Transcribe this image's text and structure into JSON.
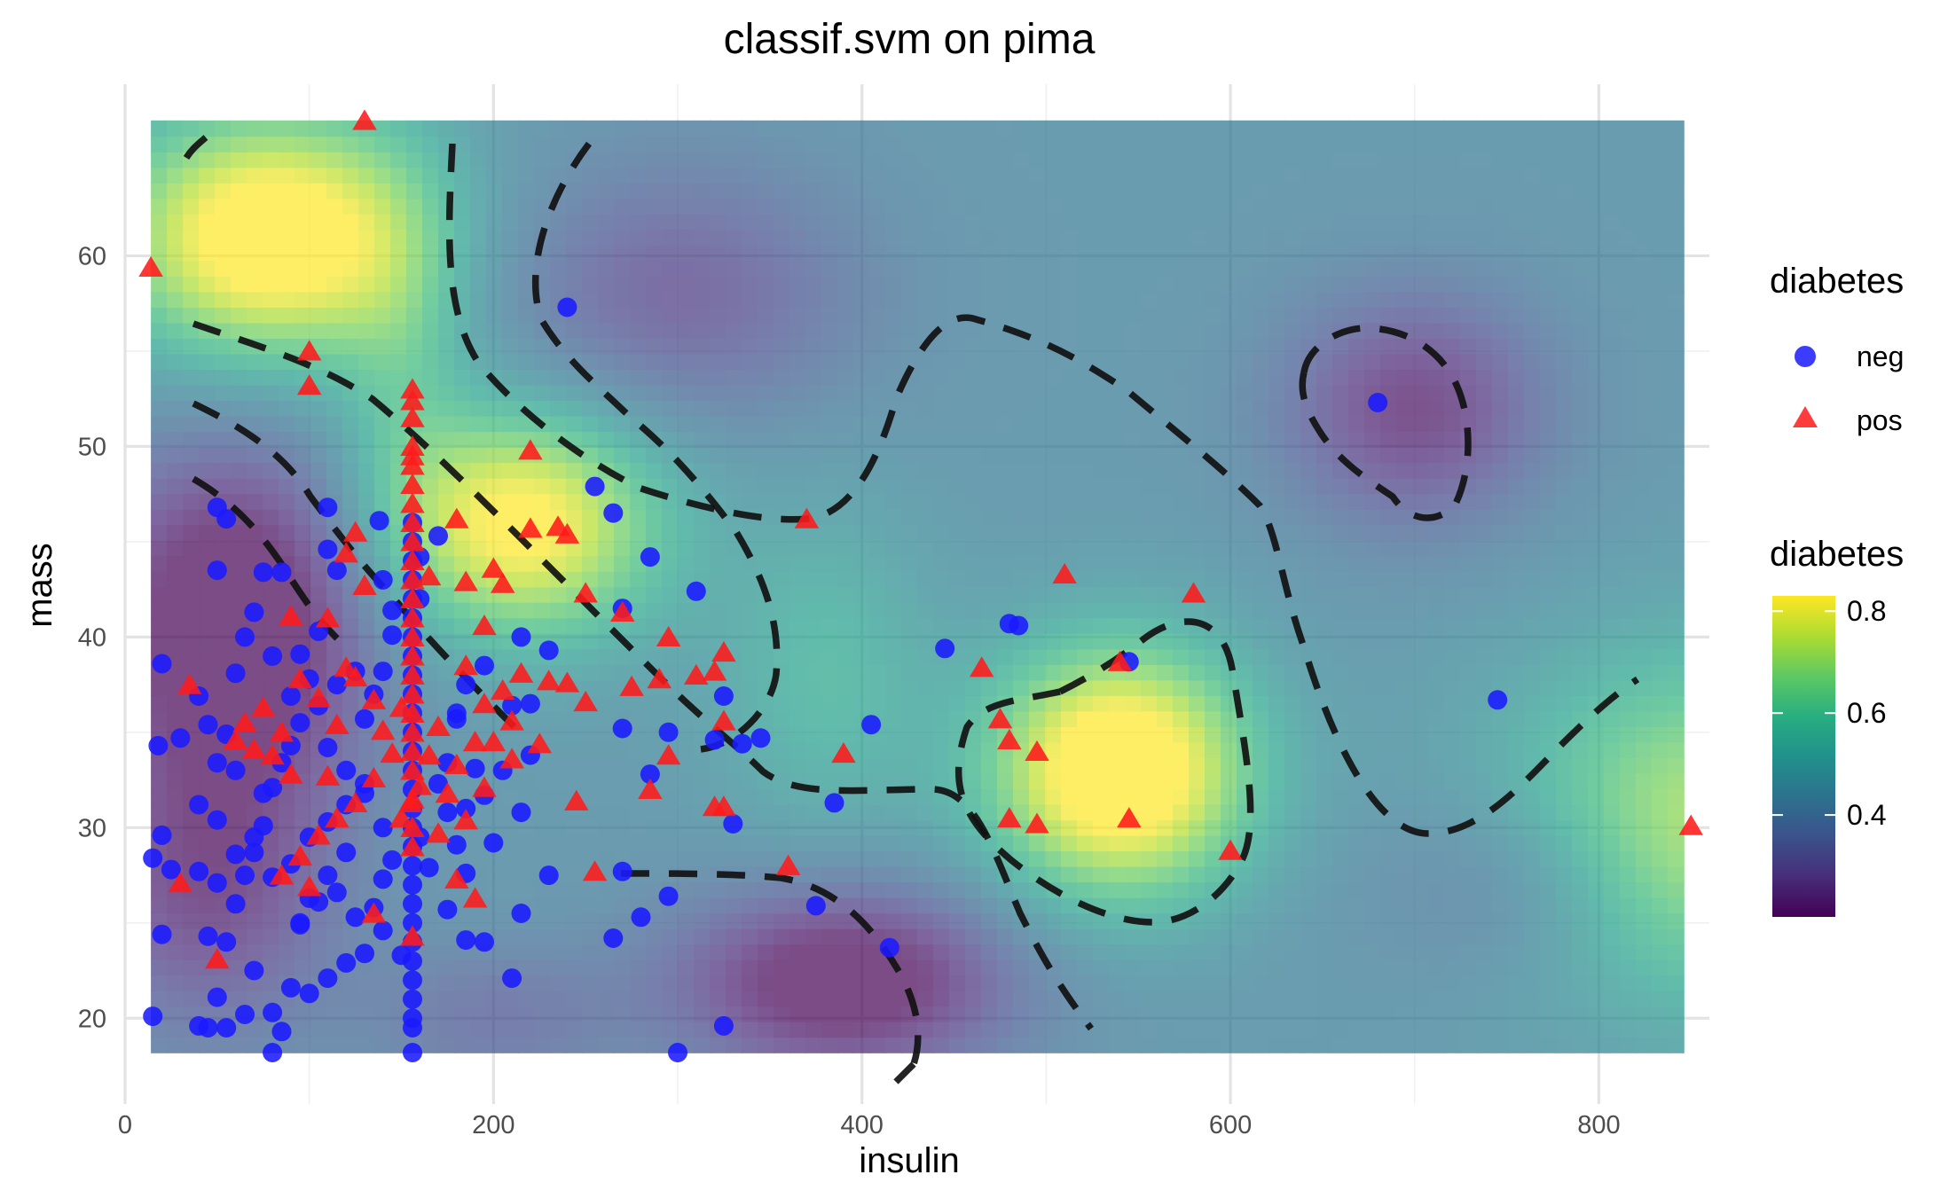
{
  "chart_data": {
    "type": "scatter",
    "title": "classif.svm on pima",
    "xlabel": "insulin",
    "ylabel": "mass",
    "xlim": [
      0,
      860
    ],
    "ylim": [
      15.5,
      69
    ],
    "x_ticks": [
      0,
      200,
      400,
      600,
      800
    ],
    "x_tick_labels": [
      "0",
      "200",
      "400",
      "600",
      "800"
    ],
    "y_ticks": [
      20,
      30,
      40,
      50,
      60
    ],
    "y_tick_labels": [
      "20",
      "30",
      "40",
      "50",
      "60"
    ],
    "grid": true,
    "background": {
      "type": "heatmap",
      "x_range": [
        14,
        846
      ],
      "y_range": [
        18.2,
        67.1
      ],
      "colormap": "viridis",
      "value_range": [
        0.2,
        0.83
      ],
      "opacity": 0.7
    },
    "legend_shape": {
      "title": "diabetes",
      "placement": "right",
      "entries": [
        {
          "label": "neg",
          "shape": "circle",
          "color": "#1a1aff"
        },
        {
          "label": "pos",
          "shape": "triangle",
          "color": "#ff1a1a"
        }
      ]
    },
    "legend_fill": {
      "title": "diabetes",
      "placement": "right",
      "ticks": [
        0.4,
        0.6,
        0.8
      ],
      "tick_labels": [
        "0.4",
        "0.6",
        "0.8"
      ],
      "range": [
        0.2,
        0.83
      ]
    },
    "series": [
      {
        "name": "neg",
        "shape": "circle",
        "color": "#1a1aff",
        "points": [
          [
            240,
            57.3
          ],
          [
            680,
            52.3
          ],
          [
            745,
            36.7
          ],
          [
            445,
            39.4
          ],
          [
            480,
            40.7
          ],
          [
            485,
            40.6
          ],
          [
            545,
            38.7
          ],
          [
            415,
            23.7
          ],
          [
            325,
            19.6
          ],
          [
            300,
            18.2
          ],
          [
            255,
            47.9
          ],
          [
            265,
            46.5
          ],
          [
            285,
            44.2
          ],
          [
            310,
            42.4
          ],
          [
            270,
            41.5
          ],
          [
            230,
            39.3
          ],
          [
            325,
            36.9
          ],
          [
            320,
            34.6
          ],
          [
            335,
            34.4
          ],
          [
            345,
            34.7
          ],
          [
            405,
            35.4
          ],
          [
            295,
            35
          ],
          [
            270,
            35.2
          ],
          [
            285,
            32.8
          ],
          [
            385,
            31.3
          ],
          [
            330,
            30.2
          ],
          [
            270,
            27.7
          ],
          [
            230,
            27.5
          ],
          [
            280,
            25.3
          ],
          [
            295,
            26.4
          ],
          [
            375,
            25.9
          ],
          [
            265,
            24.2
          ],
          [
            210,
            22.1
          ],
          [
            215,
            25.5
          ],
          [
            215,
            30.8
          ],
          [
            220,
            33.8
          ],
          [
            210,
            36.4
          ],
          [
            220,
            36.5
          ],
          [
            215,
            40
          ],
          [
            195,
            38.5
          ],
          [
            185,
            37.5
          ],
          [
            180,
            36
          ],
          [
            170,
            45.3
          ],
          [
            160,
            44.2
          ],
          [
            160,
            42
          ],
          [
            145,
            41.4
          ],
          [
            140,
            43
          ],
          [
            138,
            46.1
          ],
          [
            110,
            46.8
          ],
          [
            110,
            44.6
          ],
          [
            115,
            43.5
          ],
          [
            85,
            43.4
          ],
          [
            75,
            43.4
          ],
          [
            55,
            46.2
          ],
          [
            50,
            46.8
          ],
          [
            50,
            43.5
          ],
          [
            20,
            38.6
          ],
          [
            18,
            34.3
          ],
          [
            30,
            34.7
          ],
          [
            40,
            36.9
          ],
          [
            45,
            35.4
          ],
          [
            55,
            34.9
          ],
          [
            50,
            33.4
          ],
          [
            60,
            33
          ],
          [
            40,
            31.2
          ],
          [
            50,
            30.4
          ],
          [
            60,
            28.6
          ],
          [
            70,
            29.5
          ],
          [
            75,
            31.8
          ],
          [
            80,
            27.4
          ],
          [
            25,
            27.8
          ],
          [
            40,
            27.7
          ],
          [
            50,
            27.1
          ],
          [
            60,
            26
          ],
          [
            45,
            24.3
          ],
          [
            55,
            24
          ],
          [
            20,
            24.4
          ],
          [
            15,
            28.4
          ],
          [
            20,
            29.6
          ],
          [
            15,
            20.1
          ],
          [
            40,
            19.6
          ],
          [
            45,
            19.5
          ],
          [
            55,
            19.5
          ],
          [
            50,
            21.1
          ],
          [
            65,
            20.2
          ],
          [
            80,
            20.3
          ],
          [
            80,
            18.2
          ],
          [
            85,
            19.3
          ],
          [
            70,
            22.5
          ],
          [
            90,
            21.6
          ],
          [
            100,
            21.3
          ],
          [
            110,
            22.1
          ],
          [
            120,
            22.9
          ],
          [
            130,
            23.4
          ],
          [
            140,
            24.6
          ],
          [
            150,
            23.3
          ],
          [
            95,
            25
          ],
          [
            105,
            26.1
          ],
          [
            115,
            26.6
          ],
          [
            125,
            25.3
          ],
          [
            90,
            28.1
          ],
          [
            100,
            29.5
          ],
          [
            110,
            30.3
          ],
          [
            120,
            31.2
          ],
          [
            130,
            32.3
          ],
          [
            85,
            33.4
          ],
          [
            95,
            35.5
          ],
          [
            105,
            36.4
          ],
          [
            115,
            37.5
          ],
          [
            125,
            38.2
          ],
          [
            95,
            39.1
          ],
          [
            105,
            40.3
          ],
          [
            100,
            37.8
          ],
          [
            90,
            34.3
          ],
          [
            80,
            32.1
          ],
          [
            75,
            30.1
          ],
          [
            70,
            28.7
          ],
          [
            65,
            27.5
          ],
          [
            60,
            38.1
          ],
          [
            65,
            40
          ],
          [
            70,
            41.3
          ],
          [
            80,
            39
          ],
          [
            90,
            36.9
          ],
          [
            110,
            34.2
          ],
          [
            120,
            33
          ],
          [
            130,
            31.8
          ],
          [
            140,
            30
          ],
          [
            145,
            28.3
          ],
          [
            140,
            27.3
          ],
          [
            135,
            25.8
          ],
          [
            130,
            35.7
          ],
          [
            135,
            37
          ],
          [
            140,
            38.2
          ],
          [
            145,
            40.1
          ],
          [
            120,
            28.7
          ],
          [
            110,
            27.5
          ],
          [
            100,
            26.3
          ],
          [
            95,
            24.9
          ],
          [
            170,
            32.3
          ],
          [
            175,
            30.8
          ],
          [
            180,
            29.1
          ],
          [
            185,
            27.6
          ],
          [
            175,
            25.7
          ],
          [
            185,
            24.1
          ],
          [
            195,
            24
          ],
          [
            175,
            33.4
          ],
          [
            180,
            35.7
          ],
          [
            190,
            33.1
          ],
          [
            195,
            31.7
          ],
          [
            200,
            29.2
          ],
          [
            205,
            33
          ],
          [
            185,
            31
          ],
          [
            165,
            27.9
          ],
          [
            160,
            29.5
          ]
        ]
      },
      {
        "name": "neg-column-at-156",
        "x": 156,
        "color": "#1a1aff",
        "y": [
          18.2,
          19.5,
          20,
          21,
          22,
          23,
          24,
          25,
          26,
          27,
          28,
          29,
          30,
          31,
          32,
          33,
          34,
          35,
          36,
          37,
          38,
          39,
          40,
          41,
          42,
          43,
          44,
          45,
          46
        ]
      },
      {
        "name": "pos",
        "shape": "triangle",
        "color": "#ff1a1a",
        "points": [
          [
            130,
            67.1
          ],
          [
            14,
            59.4
          ],
          [
            100,
            55
          ],
          [
            100,
            53.2
          ],
          [
            220,
            49.8
          ],
          [
            220,
            45.7
          ],
          [
            235,
            45.8
          ],
          [
            240,
            45.4
          ],
          [
            370,
            46.2
          ],
          [
            510,
            43.3
          ],
          [
            580,
            42.3
          ],
          [
            250,
            42.3
          ],
          [
            270,
            41.3
          ],
          [
            295,
            40
          ],
          [
            325,
            39.2
          ],
          [
            320,
            38.2
          ],
          [
            290,
            37.8
          ],
          [
            275,
            37.4
          ],
          [
            230,
            37.7
          ],
          [
            240,
            37.6
          ],
          [
            250,
            36.6
          ],
          [
            310,
            38
          ],
          [
            325,
            35.6
          ],
          [
            295,
            33.8
          ],
          [
            225,
            34.4
          ],
          [
            245,
            31.4
          ],
          [
            285,
            32
          ],
          [
            320,
            31.1
          ],
          [
            325,
            31.1
          ],
          [
            390,
            33.9
          ],
          [
            360,
            28
          ],
          [
            255,
            27.7
          ],
          [
            135,
            25.5
          ],
          [
            465,
            38.4
          ],
          [
            475,
            35.7
          ],
          [
            480,
            34.6
          ],
          [
            495,
            34
          ],
          [
            540,
            38.7
          ],
          [
            480,
            30.5
          ],
          [
            495,
            30.2
          ],
          [
            545,
            30.5
          ],
          [
            600,
            28.8
          ],
          [
            850,
            30.1
          ],
          [
            200,
            43.6
          ],
          [
            205,
            42.8
          ],
          [
            180,
            46.2
          ],
          [
            185,
            42.9
          ],
          [
            165,
            43.2
          ],
          [
            125,
            45.5
          ],
          [
            120,
            44.4
          ],
          [
            130,
            42.7
          ],
          [
            110,
            41
          ],
          [
            90,
            41.1
          ],
          [
            95,
            37.8
          ],
          [
            105,
            36.8
          ],
          [
            115,
            35.4
          ],
          [
            120,
            38.4
          ],
          [
            125,
            37.9
          ],
          [
            135,
            36.7
          ],
          [
            140,
            35.1
          ],
          [
            150,
            36.3
          ],
          [
            145,
            33.9
          ],
          [
            135,
            32.6
          ],
          [
            125,
            31.3
          ],
          [
            115,
            30.5
          ],
          [
            105,
            29.6
          ],
          [
            95,
            28.5
          ],
          [
            85,
            27.5
          ],
          [
            100,
            26.9
          ],
          [
            110,
            32.7
          ],
          [
            90,
            32.8
          ],
          [
            80,
            33.8
          ],
          [
            70,
            34.1
          ],
          [
            65,
            35.5
          ],
          [
            75,
            36.3
          ],
          [
            85,
            35
          ],
          [
            30,
            27.1
          ],
          [
            35,
            37.5
          ],
          [
            50,
            23.1
          ],
          [
            60,
            34.6
          ],
          [
            185,
            38.5
          ],
          [
            195,
            40.6
          ],
          [
            195,
            36.5
          ],
          [
            205,
            37.2
          ],
          [
            210,
            35.6
          ],
          [
            180,
            33.3
          ],
          [
            190,
            34.5
          ],
          [
            195,
            32.1
          ],
          [
            185,
            30.4
          ],
          [
            175,
            31.8
          ],
          [
            170,
            29.7
          ],
          [
            165,
            33.8
          ],
          [
            170,
            35.3
          ],
          [
            180,
            27.3
          ],
          [
            190,
            26.3
          ],
          [
            150,
            30.5
          ],
          [
            155,
            31.3
          ],
          [
            160,
            32.2
          ],
          [
            215,
            38.1
          ],
          [
            210,
            33.6
          ],
          [
            200,
            34.5
          ]
        ]
      },
      {
        "name": "pos-column-at-156",
        "x": 156,
        "color": "#ff1a1a",
        "y": [
          24.3,
          29,
          30,
          31.5,
          33,
          34,
          35,
          36,
          37,
          38,
          39,
          40,
          41,
          42,
          43,
          44,
          45,
          46,
          47,
          48,
          49,
          49.5,
          50,
          51.5,
          52.4,
          53
        ]
      }
    ]
  }
}
